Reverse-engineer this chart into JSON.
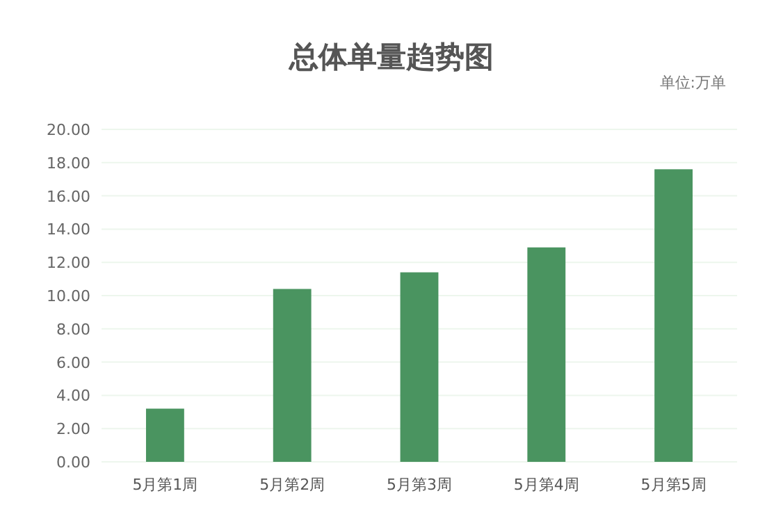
{
  "chart_data": {
    "type": "bar",
    "title": "总体单量趋势图",
    "annotations": [
      "单位:万单"
    ],
    "categories": [
      "5月第1周",
      "5月第2周",
      "5月第3周",
      "5月第4周",
      "5月第5周"
    ],
    "values": [
      3.2,
      10.4,
      11.4,
      12.9,
      17.6
    ],
    "color": "#4a9460",
    "ylim": [
      0,
      20
    ],
    "yticks": [
      {
        "value": 0,
        "label": "0.00"
      },
      {
        "value": 2,
        "label": "2.00"
      },
      {
        "value": 4,
        "label": "4.00"
      },
      {
        "value": 6,
        "label": "6.00"
      },
      {
        "value": 8,
        "label": "8.00"
      },
      {
        "value": 10,
        "label": "10.00"
      },
      {
        "value": 12,
        "label": "12.00"
      },
      {
        "value": 14,
        "label": "14.00"
      },
      {
        "value": 16,
        "label": "16.00"
      },
      {
        "value": 18,
        "label": "18.00"
      },
      {
        "value": 20,
        "label": "20.00"
      }
    ],
    "grid": "y"
  }
}
